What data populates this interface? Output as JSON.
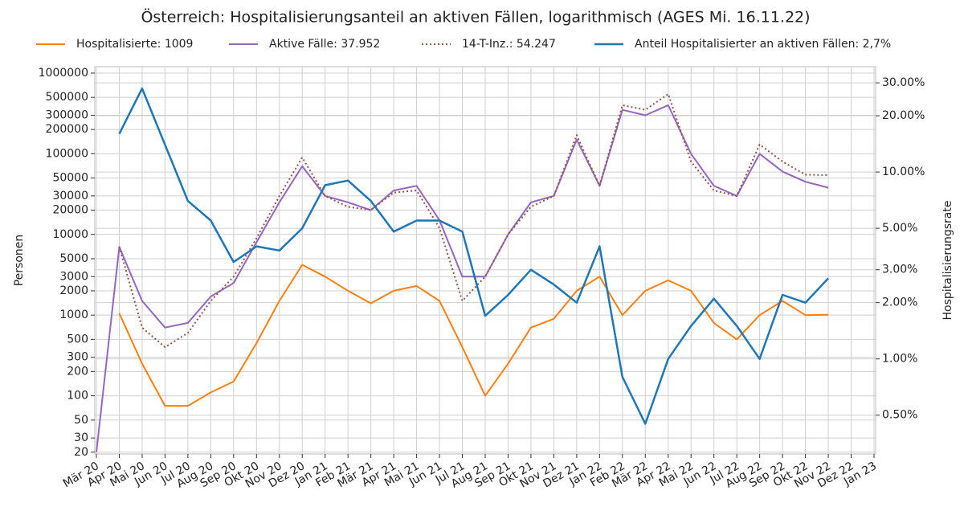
{
  "chart_data": {
    "type": "line",
    "title": "Österreich: Hospitalisierungsanteil an aktiven Fällen, logarithmisch (AGES Mi. 16.11.22)",
    "ylabel": "Personen",
    "y2label": "Hospitalisierungsrate",
    "log_scale": true,
    "grid": true,
    "legend": "top",
    "categories": [
      "Mär 20",
      "Apr 20",
      "Mai 20",
      "Jun 20",
      "Jul 20",
      "Aug 20",
      "Sep 20",
      "Okt 20",
      "Nov 20",
      "Dez 20",
      "Jan 21",
      "Feb 21",
      "Mär 21",
      "Apr 21",
      "Mai 21",
      "Jun 21",
      "Jul 21",
      "Aug 21",
      "Sep 21",
      "Okt 21",
      "Nov 21",
      "Dez 21",
      "Jan 22",
      "Feb 22",
      "Mär 22",
      "Apr 22",
      "Mai 22",
      "Jun 22",
      "Jul 22",
      "Aug 22",
      "Sep 22",
      "Okt 22",
      "Nov 22",
      "Dez 22",
      "Jan 23"
    ],
    "ylim": [
      19,
      1200000
    ],
    "yticks": [
      20,
      30,
      50,
      100,
      200,
      300,
      500,
      1000,
      2000,
      3000,
      5000,
      10000,
      20000,
      30000,
      50000,
      100000,
      200000,
      300000,
      500000,
      1000000
    ],
    "y2lim": [
      0.31,
      36.6
    ],
    "y2ticks": [
      {
        "value": 0.5,
        "label": "0.50%"
      },
      {
        "value": 1,
        "label": "1.00%"
      },
      {
        "value": 2,
        "label": "2.00%"
      },
      {
        "value": 3,
        "label": "3.00%"
      },
      {
        "value": 5,
        "label": "5.00%"
      },
      {
        "value": 10,
        "label": "10.00%"
      },
      {
        "value": 20,
        "label": "20.00%"
      },
      {
        "value": 30,
        "label": "30.00%"
      }
    ],
    "series": [
      {
        "name": "Hospitalisierte: 1009",
        "color": "#ff7f0e",
        "style": "solid",
        "values": [
          null,
          1050,
          250,
          75,
          75,
          110,
          150,
          450,
          1500,
          4200,
          3000,
          2000,
          1400,
          2000,
          2300,
          1500,
          400,
          100,
          250,
          700,
          900,
          2000,
          3000,
          1000,
          2000,
          2700,
          2000,
          800,
          500,
          1000,
          1500,
          1000,
          1009,
          null,
          null
        ]
      },
      {
        "name": "Aktive  Fälle: 37.952",
        "color": "#9467bd",
        "style": "solid",
        "values": [
          20,
          7000,
          1500,
          700,
          800,
          1700,
          2500,
          8000,
          25000,
          70000,
          30000,
          25000,
          20000,
          35000,
          40000,
          15000,
          3000,
          3000,
          10000,
          25000,
          30000,
          150000,
          40000,
          350000,
          300000,
          400000,
          100000,
          40000,
          30000,
          100000,
          60000,
          45000,
          37952,
          null,
          null
        ]
      },
      {
        "name": "14-T-Inz.: 54.247",
        "color": "#8c564b",
        "style": "dotted",
        "values": [
          null,
          7000,
          700,
          400,
          600,
          1500,
          3000,
          9000,
          30000,
          90000,
          30000,
          22000,
          20000,
          33000,
          35000,
          12000,
          1500,
          3000,
          10000,
          22000,
          30000,
          170000,
          40000,
          400000,
          350000,
          550000,
          80000,
          35000,
          30000,
          130000,
          80000,
          55000,
          54247,
          null,
          null
        ]
      },
      {
        "name": "Anteil Hospitalisierter an aktiven Fällen: 2,7%",
        "color": "#1f77b4",
        "style": "solid",
        "axis": "y2",
        "values": [
          null,
          16,
          28,
          14,
          7,
          5.5,
          3.3,
          4,
          3.8,
          5,
          8.5,
          9,
          7,
          4.8,
          5.5,
          5.5,
          4.8,
          1.7,
          2.2,
          3,
          2.5,
          2,
          4,
          0.8,
          0.45,
          1,
          1.5,
          2.1,
          1.5,
          1,
          2.2,
          2,
          2.7,
          null,
          null
        ]
      }
    ]
  }
}
